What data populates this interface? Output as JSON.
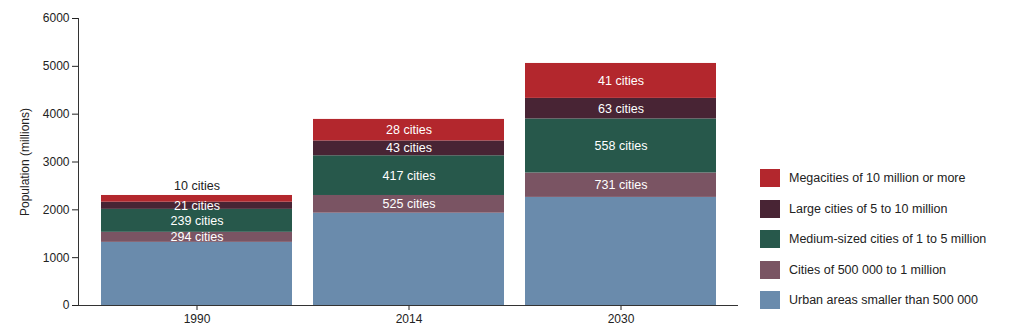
{
  "chart_data": {
    "type": "bar",
    "stacked": true,
    "ylabel": "Population (millions)",
    "categories": [
      "1990",
      "2014",
      "2030"
    ],
    "series": [
      {
        "name": "Urban areas smaller than 500 000",
        "color": "#6a8bac",
        "values": [
          1320,
          1930,
          2260
        ]
      },
      {
        "name": "Cities of 500 000 to 1 million",
        "color": "#7a5463",
        "values": [
          210,
          370,
          510
        ],
        "annotations": [
          "294 cities",
          "525 cities",
          "731 cities"
        ]
      },
      {
        "name": "Medium-sized cities of 1 to 5 million",
        "color": "#27584b",
        "values": [
          480,
          830,
          1130
        ],
        "annotations": [
          "239 cities",
          "417 cities",
          "558 cities"
        ]
      },
      {
        "name": "Large cities of 5 to 10 million",
        "color": "#482434",
        "values": [
          150,
          310,
          430
        ],
        "annotations": [
          "21 cities",
          "43 cities",
          "63 cities"
        ]
      },
      {
        "name": "Megacities of 10 million or more",
        "color": "#b3272d",
        "values": [
          140,
          450,
          730
        ],
        "annotations": [
          "10 cities",
          "28 cities",
          "41 cities"
        ]
      }
    ],
    "ylim": [
      0,
      6000
    ],
    "yticks": [
      0,
      1000,
      2000,
      3000,
      4000,
      5000,
      6000
    ],
    "grid": false,
    "legend": "right"
  }
}
